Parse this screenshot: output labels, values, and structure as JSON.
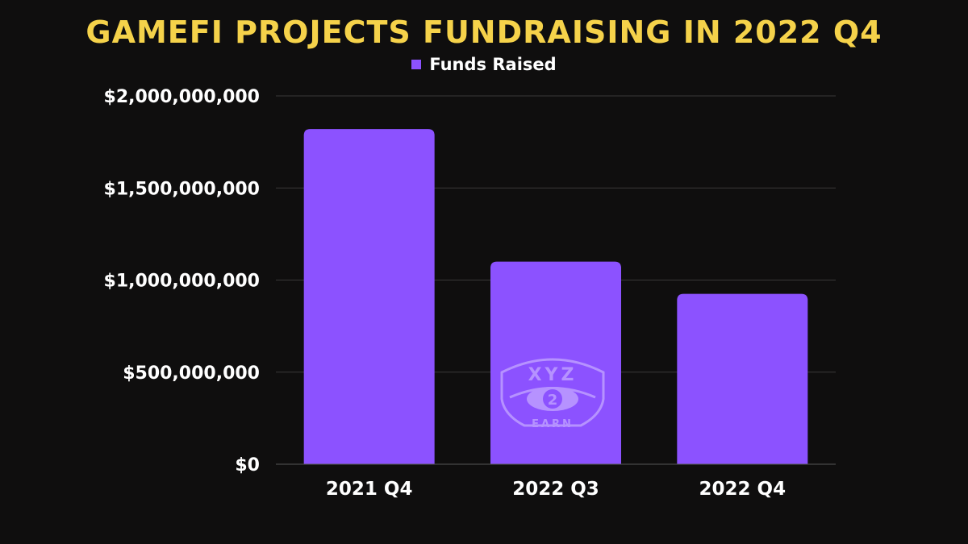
{
  "chart_data": {
    "type": "bar",
    "title": "GAMEFI PROJECTS FUNDRAISING IN 2022 Q4",
    "categories": [
      "2021 Q4",
      "2022 Q3",
      "2022 Q4"
    ],
    "series": [
      {
        "name": "Funds Raised",
        "values": [
          1820000000,
          1100000000,
          925000000
        ]
      }
    ],
    "ylim": [
      0,
      2000000000
    ],
    "yticks": [
      0,
      500000000,
      1000000000,
      1500000000,
      2000000000
    ],
    "ytick_labels": [
      "$0",
      "$500,000,000",
      "$1,000,000,000",
      "$1,500,000,000",
      "$2,000,000,000"
    ],
    "grid": true,
    "legend_position": "top-center"
  },
  "colors": {
    "background": "#0f0e0e",
    "title": "#f5d24a",
    "bar": "#8c52ff",
    "grid": "#3a3838",
    "text": "#ffffff"
  },
  "watermark": {
    "icon": "xyz2earn-logo",
    "text_top": "XYZ",
    "text_mid": "2",
    "text_bottom": "EARN"
  }
}
